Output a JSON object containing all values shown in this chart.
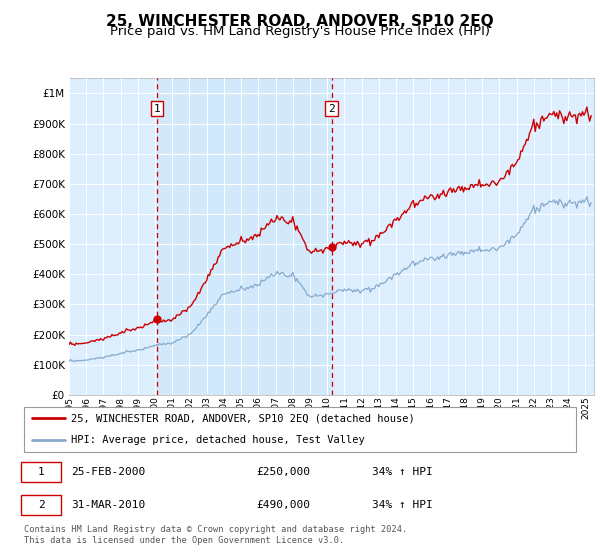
{
  "title": "25, WINCHESTER ROAD, ANDOVER, SP10 2EQ",
  "subtitle": "Price paid vs. HM Land Registry's House Price Index (HPI)",
  "title_fontsize": 11,
  "subtitle_fontsize": 9.5,
  "background_color": "#ffffff",
  "plot_bg_color": "#ddeeff",
  "grid_color": "#cccccc",
  "yticks": [
    0,
    100000,
    200000,
    300000,
    400000,
    500000,
    600000,
    700000,
    800000,
    900000,
    1000000
  ],
  "ylim": [
    0,
    1050000
  ],
  "xlim_start": 1995.0,
  "xlim_end": 2025.5,
  "xtick_years": [
    1995,
    1996,
    1997,
    1998,
    1999,
    2000,
    2001,
    2002,
    2003,
    2004,
    2005,
    2006,
    2007,
    2008,
    2009,
    2010,
    2011,
    2012,
    2013,
    2014,
    2015,
    2016,
    2017,
    2018,
    2019,
    2020,
    2021,
    2022,
    2023,
    2024,
    2025
  ],
  "red_line_color": "#cc0000",
  "blue_line_color": "#88aacc",
  "shade_color": "#cce0f0",
  "vline1_x": 2000.12,
  "vline2_x": 2010.25,
  "sale1_dot_x": 2000.12,
  "sale1_dot_y": 250000,
  "sale2_dot_x": 2010.25,
  "sale2_dot_y": 490000,
  "marker1_x": 2000.12,
  "marker2_x": 2010.25,
  "marker_y": 950000,
  "legend_line1": "25, WINCHESTER ROAD, ANDOVER, SP10 2EQ (detached house)",
  "legend_line2": "HPI: Average price, detached house, Test Valley",
  "sale1_date": "25-FEB-2000",
  "sale1_price": "£250,000",
  "sale1_hpi": "34% ↑ HPI",
  "sale2_date": "31-MAR-2010",
  "sale2_price": "£490,000",
  "sale2_hpi": "34% ↑ HPI",
  "footer": "Contains HM Land Registry data © Crown copyright and database right 2024.\nThis data is licensed under the Open Government Licence v3.0."
}
